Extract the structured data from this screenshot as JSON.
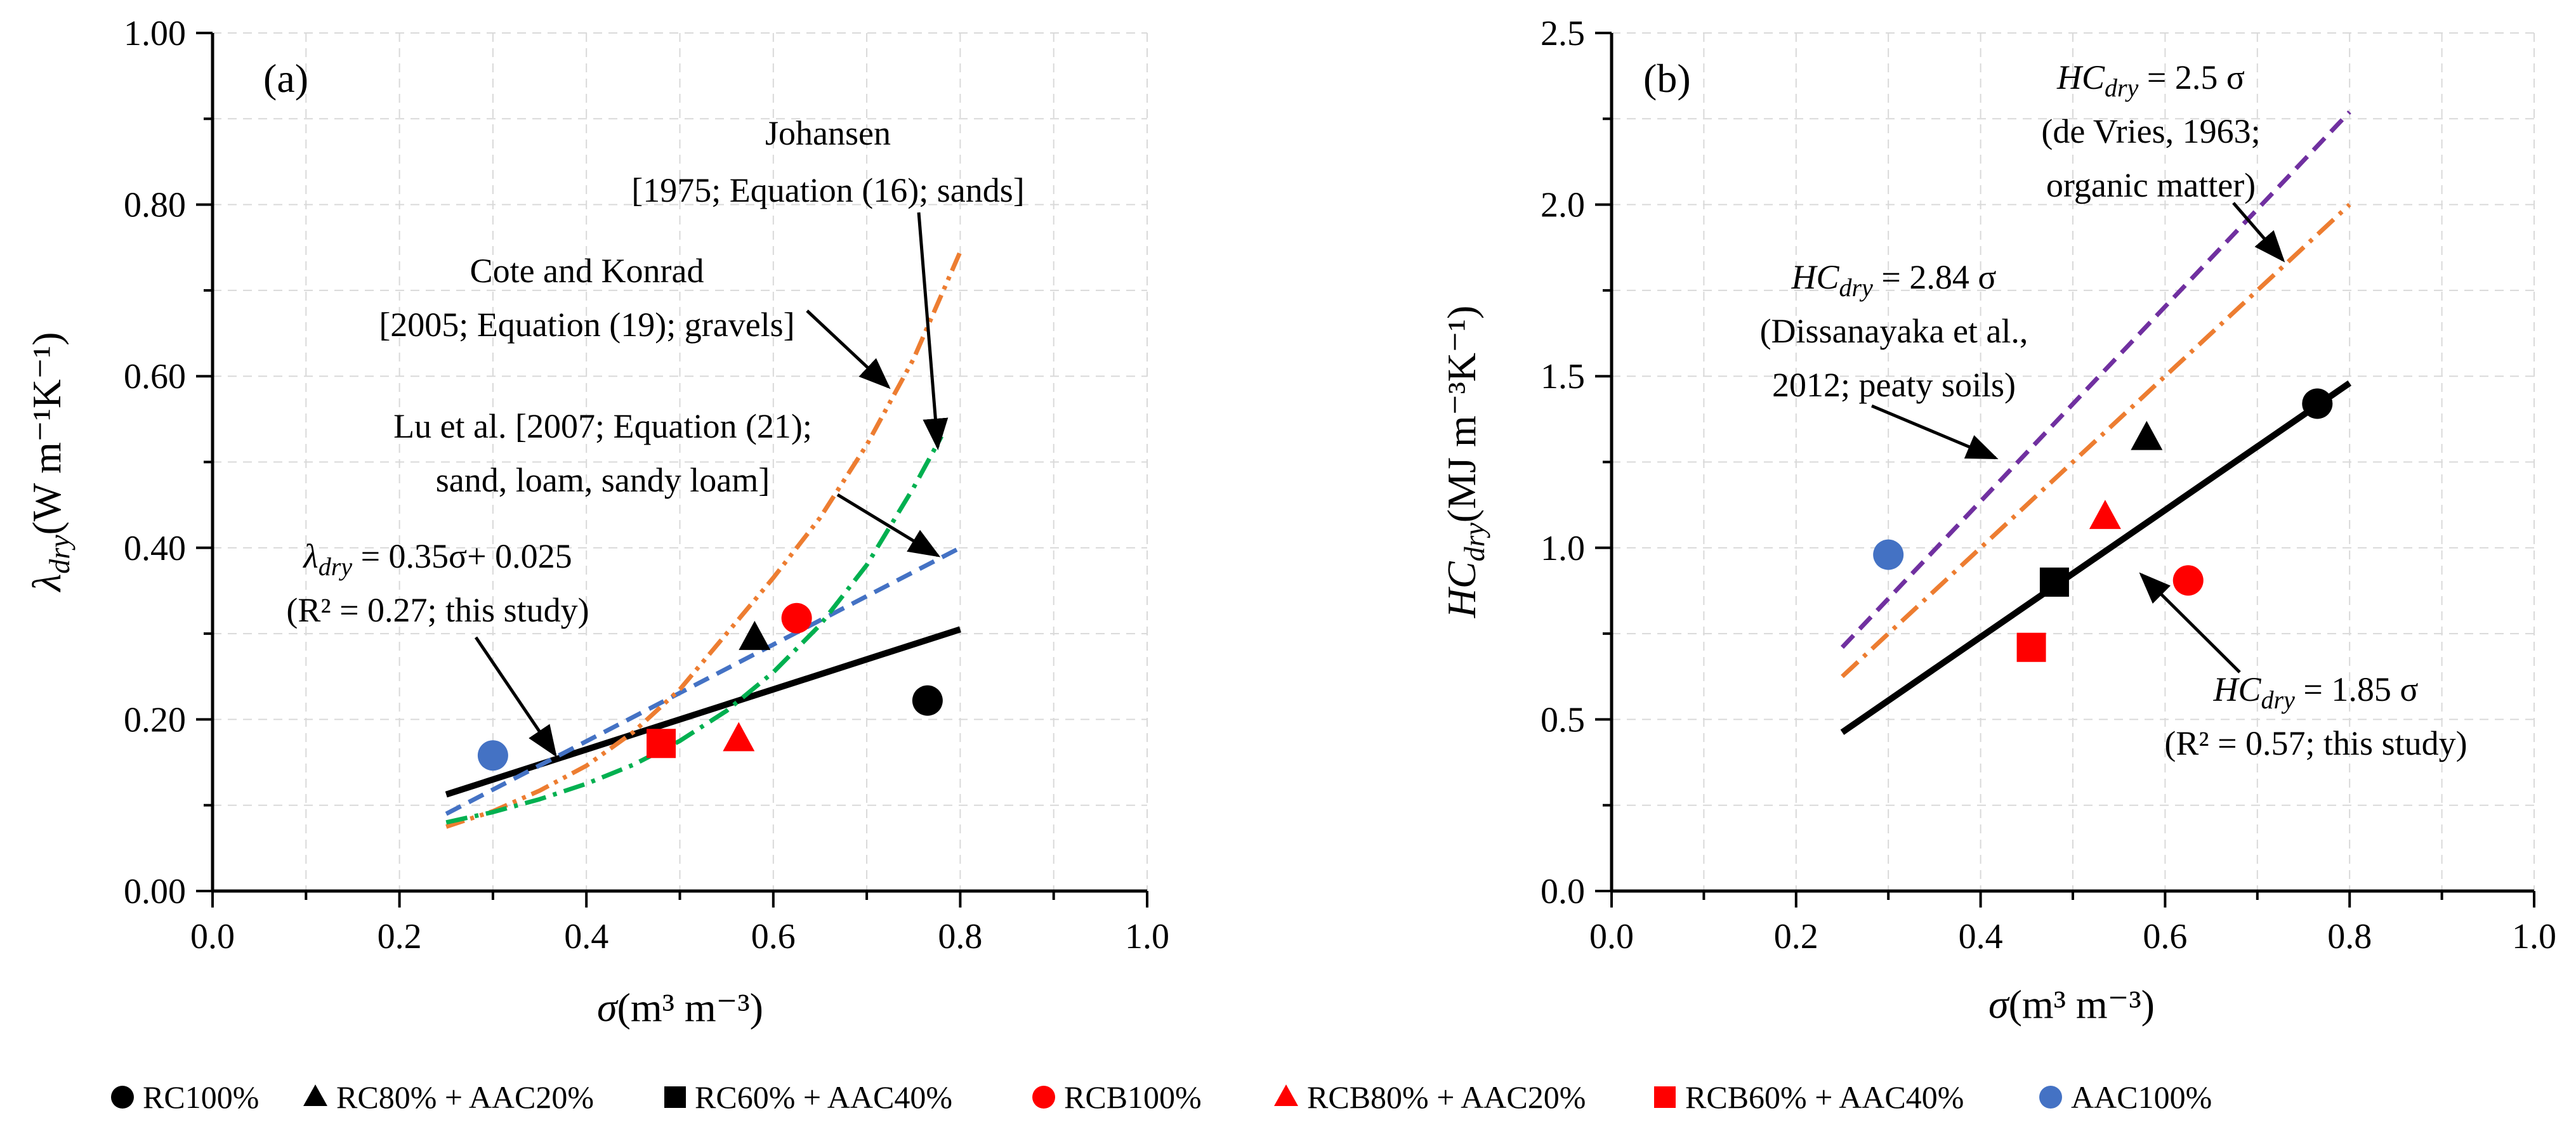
{
  "legend": [
    {
      "label": "RC100%",
      "marker": "circle",
      "color": "#000000"
    },
    {
      "label": "RC80% + AAC20%",
      "marker": "triangle",
      "color": "#000000"
    },
    {
      "label": "RC60% + AAC40%",
      "marker": "square",
      "color": "#000000"
    },
    {
      "label": "RCB100%",
      "marker": "circle",
      "color": "#ff0000"
    },
    {
      "label": "RCB80% + AAC20%",
      "marker": "triangle",
      "color": "#ff0000"
    },
    {
      "label": "RCB60% + AAC40%",
      "marker": "square",
      "color": "#ff0000"
    },
    {
      "label": "AAC100%",
      "marker": "circle",
      "color": "#4472c4"
    }
  ],
  "chart_data": [
    {
      "type": "scatter",
      "panel_label": "(a)",
      "xlabel": {
        "symbol": "σ",
        "units": "(m³ m⁻³)"
      },
      "ylabel": {
        "symbol": "λ",
        "sub": "dry",
        "units": "(W m⁻¹K⁻¹)"
      },
      "xlim": [
        0,
        1.0
      ],
      "ylim": [
        0,
        1.0
      ],
      "xticks": [
        "0.0",
        "0.2",
        "0.4",
        "0.6",
        "0.8",
        "1.0"
      ],
      "yticks": [
        "0.00",
        "0.20",
        "0.40",
        "0.60",
        "0.80",
        "1.00"
      ],
      "grid": true,
      "points": [
        {
          "series": "RC100%",
          "x": 0.765,
          "y": 0.222
        },
        {
          "series": "RC80% + AAC20%",
          "x": 0.58,
          "y": 0.295
        },
        {
          "series": "RCB100%",
          "x": 0.625,
          "y": 0.318
        },
        {
          "series": "RCB80% + AAC20%",
          "x": 0.563,
          "y": 0.177
        },
        {
          "series": "RCB60% + AAC40%",
          "x": 0.48,
          "y": 0.172
        },
        {
          "series": "AAC100%",
          "x": 0.3,
          "y": 0.158
        }
      ],
      "lines": [
        {
          "name": "This study",
          "style": "solid",
          "color": "#000000",
          "formula": "0.35x+0.025",
          "x": [
            0.25,
            0.8
          ],
          "y": [
            0.1125,
            0.305
          ]
        },
        {
          "name": "Lu et al.",
          "style": "dash",
          "color": "#4472c4",
          "x": [
            0.25,
            0.8
          ],
          "y": [
            0.09,
            0.4
          ]
        },
        {
          "name": "Cote and Konrad",
          "style": "dashdotdot",
          "color": "#ed7d31",
          "x": [
            0.25,
            0.3,
            0.35,
            0.4,
            0.45,
            0.5,
            0.55,
            0.6,
            0.65,
            0.7,
            0.75,
            0.8
          ],
          "y": [
            0.075,
            0.093,
            0.117,
            0.146,
            0.185,
            0.235,
            0.3,
            0.365,
            0.435,
            0.52,
            0.62,
            0.745
          ]
        },
        {
          "name": "Johansen",
          "style": "dashdot",
          "color": "#00b050",
          "x": [
            0.25,
            0.3,
            0.35,
            0.4,
            0.45,
            0.5,
            0.55,
            0.6,
            0.65,
            0.7,
            0.75,
            0.78
          ],
          "y": [
            0.08,
            0.092,
            0.107,
            0.125,
            0.147,
            0.175,
            0.21,
            0.255,
            0.31,
            0.38,
            0.47,
            0.53
          ]
        }
      ],
      "annotations": [
        {
          "lines": [
            "Johansen",
            "[1975; Equation (16); sands]"
          ]
        },
        {
          "lines": [
            "Cote and Konrad",
            "[2005; Equation (19); gravels]"
          ]
        },
        {
          "lines": [
            "Lu et al. [2007; Equation (21);",
            "sand, loam, sandy loam]"
          ]
        },
        {
          "sym": "λ",
          "sub": "dry",
          "eq": " = 0.35σ+ 0.025",
          "line2": "(R² = 0.27; this study)"
        }
      ]
    },
    {
      "type": "scatter",
      "panel_label": "(b)",
      "xlabel": {
        "symbol": "σ",
        "units": "(m³ m⁻³)"
      },
      "ylabel": {
        "symbol": "HC",
        "sub": "dry",
        "units": "(MJ m⁻³K⁻¹)"
      },
      "xlim": [
        0,
        1.0
      ],
      "ylim": [
        0,
        2.5
      ],
      "xticks": [
        "0.0",
        "0.2",
        "0.4",
        "0.6",
        "0.8",
        "1.0"
      ],
      "yticks": [
        "0.0",
        "0.5",
        "1.0",
        "1.5",
        "2.0",
        "2.5"
      ],
      "grid": true,
      "points": [
        {
          "series": "RC100%",
          "x": 0.765,
          "y": 1.42
        },
        {
          "series": "RC80% + AAC20%",
          "x": 0.58,
          "y": 1.32
        },
        {
          "series": "RC60% + AAC40%",
          "x": 0.48,
          "y": 0.9
        },
        {
          "series": "RCB100%",
          "x": 0.625,
          "y": 0.905
        },
        {
          "series": "RCB80% + AAC20%",
          "x": 0.535,
          "y": 1.09
        },
        {
          "series": "RCB60% + AAC40%",
          "x": 0.455,
          "y": 0.71
        },
        {
          "series": "AAC100%",
          "x": 0.3,
          "y": 0.98
        }
      ],
      "lines": [
        {
          "name": "This study",
          "style": "solid",
          "color": "#000000",
          "x": [
            0.25,
            0.8
          ],
          "y": [
            0.4625,
            1.48
          ]
        },
        {
          "name": "de Vries",
          "style": "dashdot",
          "color": "#ed7d31",
          "x": [
            0.25,
            0.8
          ],
          "y": [
            0.625,
            2.0
          ]
        },
        {
          "name": "Dissanayaka et al.",
          "style": "dash",
          "color": "#7030a0",
          "x": [
            0.25,
            0.8
          ],
          "y": [
            0.71,
            2.27
          ]
        }
      ],
      "annotations": [
        {
          "sym": "HC",
          "sub": "dry",
          "eq": " = 2.5 σ",
          "line2": "(de Vries, 1963;",
          "line3": "organic matter)"
        },
        {
          "sym": "HC",
          "sub": "dry",
          "eq": " = 2.84 σ",
          "line2": "(Dissanayaka et al.,",
          "line3": "2012; peaty soils)"
        },
        {
          "sym": "HC",
          "sub": "dry",
          "eq": " = 1.85 σ",
          "line2": "(R² = 0.57; this study)"
        }
      ]
    }
  ]
}
